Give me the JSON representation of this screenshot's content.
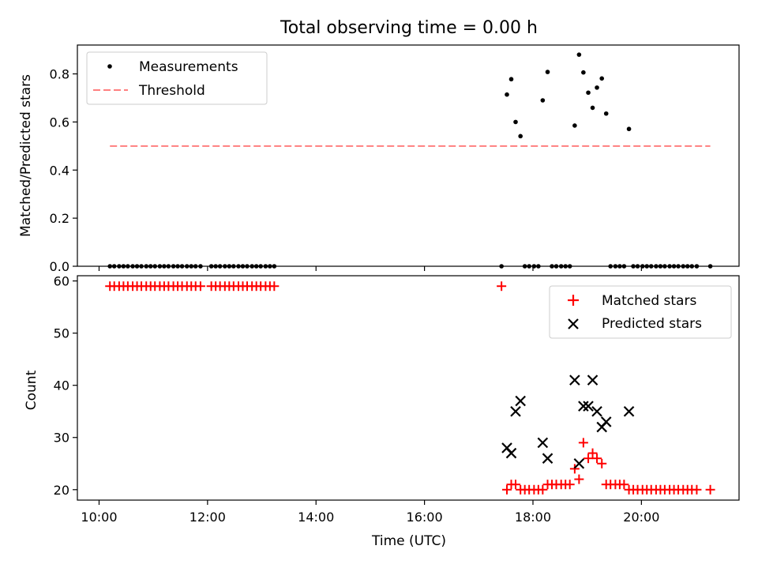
{
  "title": "Total observing time = 0.00 h",
  "chart_data": [
    {
      "type": "scatter",
      "ylabel": "Matched/Predicted stars",
      "xlabel": "",
      "xlim_hours": [
        9.6,
        21.8
      ],
      "ylim": [
        0,
        0.92
      ],
      "yticks": [
        0.0,
        0.2,
        0.4,
        0.6,
        0.8
      ],
      "ytick_labels": [
        "0.0",
        "0.2",
        "0.4",
        "0.6",
        "0.8"
      ],
      "xtick_labels": [],
      "legend_position": "top-left",
      "series": [
        {
          "name": "Measurements",
          "marker": "dot",
          "color": "#000000",
          "x_hours": [
            10.2,
            10.28,
            10.37,
            10.45,
            10.53,
            10.62,
            10.7,
            10.78,
            10.87,
            10.95,
            11.03,
            11.12,
            11.2,
            11.28,
            11.37,
            11.45,
            11.53,
            11.62,
            11.7,
            11.78,
            11.87,
            12.07,
            12.15,
            12.23,
            12.32,
            12.4,
            12.48,
            12.57,
            12.65,
            12.73,
            12.82,
            12.9,
            12.98,
            13.07,
            13.15,
            13.23,
            17.42,
            17.52,
            17.6,
            17.68,
            17.77,
            17.85,
            17.93,
            18.02,
            18.1,
            18.18,
            18.27,
            18.35,
            18.43,
            18.52,
            18.6,
            18.68,
            18.77,
            18.85,
            18.93,
            19.02,
            19.1,
            19.18,
            19.27,
            19.35,
            19.43,
            19.52,
            19.6,
            19.68,
            19.77,
            19.85,
            19.93,
            20.02,
            20.1,
            20.18,
            20.27,
            20.35,
            20.43,
            20.52,
            20.6,
            20.68,
            20.77,
            20.85,
            20.93,
            21.02,
            21.27
          ],
          "y": [
            0,
            0,
            0,
            0,
            0,
            0,
            0,
            0,
            0,
            0,
            0,
            0,
            0,
            0,
            0,
            0,
            0,
            0,
            0,
            0,
            0,
            0,
            0,
            0,
            0,
            0,
            0,
            0,
            0,
            0,
            0,
            0,
            0,
            0,
            0,
            0,
            0,
            0.714,
            0.778,
            0.6,
            0.541,
            0,
            0,
            0,
            0,
            0.69,
            0.808,
            0,
            0,
            0,
            0,
            0,
            0.585,
            0.88,
            0.806,
            0.722,
            0.659,
            0.743,
            0.781,
            0.635,
            0,
            0,
            0,
            0,
            0.571,
            0,
            0,
            0,
            0,
            0,
            0,
            0,
            0,
            0,
            0,
            0,
            0,
            0,
            0,
            0,
            0
          ]
        },
        {
          "name": "Threshold",
          "marker": "dashed-line",
          "color": "#ff7f7f",
          "x_hours": [
            10.2,
            21.27
          ],
          "y": [
            0.5,
            0.5
          ]
        }
      ]
    },
    {
      "type": "scatter",
      "ylabel": "Count",
      "xlabel": "Time (UTC)",
      "xlim_hours": [
        9.6,
        21.8
      ],
      "ylim": [
        18,
        61
      ],
      "yticks": [
        20,
        30,
        40,
        50,
        60
      ],
      "ytick_labels": [
        "20",
        "30",
        "40",
        "50",
        "60"
      ],
      "xticks_hours": [
        10,
        12,
        14,
        16,
        18,
        20
      ],
      "xtick_labels": [
        "10:00",
        "12:00",
        "14:00",
        "16:00",
        "18:00",
        "20:00"
      ],
      "legend_position": "top-right",
      "series": [
        {
          "name": "Matched stars",
          "marker": "plus",
          "color": "#ff0000",
          "x_hours": [
            10.2,
            10.28,
            10.37,
            10.45,
            10.53,
            10.62,
            10.7,
            10.78,
            10.87,
            10.95,
            11.03,
            11.12,
            11.2,
            11.28,
            11.37,
            11.45,
            11.53,
            11.62,
            11.7,
            11.78,
            11.87,
            12.07,
            12.15,
            12.23,
            12.32,
            12.4,
            12.48,
            12.57,
            12.65,
            12.73,
            12.82,
            12.9,
            12.98,
            13.07,
            13.15,
            13.23,
            17.42,
            17.52,
            17.6,
            17.68,
            17.77,
            17.85,
            17.93,
            18.02,
            18.1,
            18.18,
            18.27,
            18.35,
            18.43,
            18.52,
            18.6,
            18.68,
            18.77,
            18.85,
            18.93,
            19.02,
            19.1,
            19.18,
            19.27,
            19.35,
            19.43,
            19.52,
            19.6,
            19.68,
            19.77,
            19.85,
            19.93,
            20.02,
            20.1,
            20.18,
            20.27,
            20.35,
            20.43,
            20.52,
            20.6,
            20.68,
            20.77,
            20.85,
            20.93,
            21.02,
            21.27
          ],
          "y": [
            59,
            59,
            59,
            59,
            59,
            59,
            59,
            59,
            59,
            59,
            59,
            59,
            59,
            59,
            59,
            59,
            59,
            59,
            59,
            59,
            59,
            59,
            59,
            59,
            59,
            59,
            59,
            59,
            59,
            59,
            59,
            59,
            59,
            59,
            59,
            59,
            59,
            20,
            21,
            21,
            20,
            20,
            20,
            20,
            20,
            20,
            21,
            21,
            21,
            21,
            21,
            21,
            24,
            22,
            29,
            26,
            27,
            26,
            25,
            21,
            21,
            21,
            21,
            21,
            20,
            20,
            20,
            20,
            20,
            20,
            20,
            20,
            20,
            20,
            20,
            20,
            20,
            20,
            20,
            20,
            20
          ]
        },
        {
          "name": "Predicted stars",
          "marker": "x",
          "color": "#000000",
          "x_hours": [
            17.52,
            17.6,
            17.68,
            17.77,
            18.18,
            18.27,
            18.77,
            18.85,
            18.93,
            19.02,
            19.1,
            19.18,
            19.27,
            19.35,
            19.77
          ],
          "y": [
            28,
            27,
            35,
            37,
            29,
            26,
            41,
            25,
            36,
            36,
            41,
            35,
            32,
            33,
            35
          ]
        }
      ]
    }
  ]
}
